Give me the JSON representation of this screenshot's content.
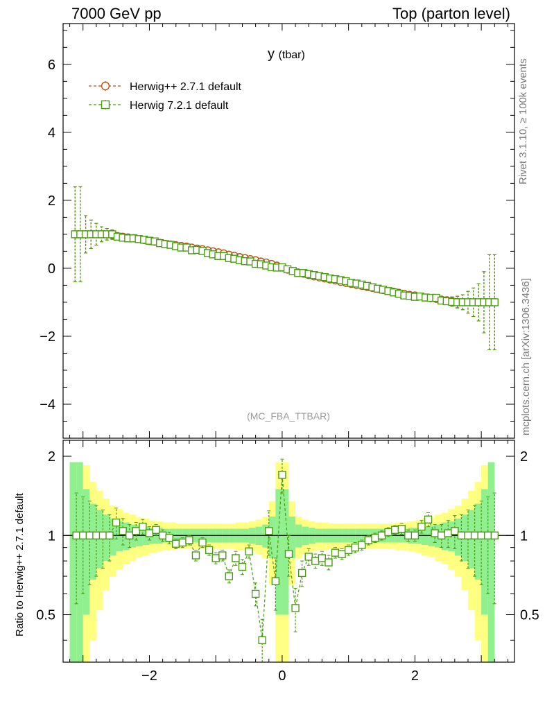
{
  "header": {
    "left": "7000 GeV pp",
    "right": "Top (parton level)"
  },
  "side": {
    "rivet": "Rivet 3.1.10, ≥ 100k events",
    "mcplots": "mcplots.cern.ch [arXiv:1306.3436]"
  },
  "chart_data": [
    {
      "type": "line",
      "title": "y (tbar)",
      "annotation": "(MC_FBA_TTBAR)",
      "xlim": [
        -3.3,
        3.5
      ],
      "ylim": [
        -5,
        7.2
      ],
      "yticks": [
        -4,
        -2,
        0,
        2,
        4,
        6
      ],
      "legend_position": "top-left",
      "series": [
        {
          "name": "Herwig++ 2.7.1 default",
          "marker": "circle",
          "color": "#b5520f",
          "x": [
            -3.12,
            -3.04,
            -2.96,
            -2.88,
            -2.8,
            -2.72,
            -2.64,
            -2.56,
            -2.48,
            -2.4,
            -2.32,
            -2.24,
            -2.16,
            -2.08,
            -2.0,
            -1.92,
            -1.84,
            -1.76,
            -1.68,
            -1.6,
            -1.52,
            -1.44,
            -1.36,
            -1.28,
            -1.2,
            -1.12,
            -1.04,
            -0.96,
            -0.88,
            -0.8,
            -0.72,
            -0.64,
            -0.56,
            -0.48,
            -0.4,
            -0.32,
            -0.24,
            -0.16,
            -0.08,
            0.0,
            0.08,
            0.16,
            0.24,
            0.32,
            0.4,
            0.48,
            0.56,
            0.64,
            0.72,
            0.8,
            0.88,
            0.96,
            1.04,
            1.12,
            1.2,
            1.28,
            1.36,
            1.44,
            1.52,
            1.6,
            1.68,
            1.76,
            1.84,
            1.92,
            2.0,
            2.08,
            2.16,
            2.24,
            2.32,
            2.4,
            2.48,
            2.56,
            2.64,
            2.72,
            2.8,
            2.88,
            2.96,
            3.04,
            3.12,
            3.2
          ],
          "y": [
            1.0,
            1.0,
            1.0,
            1.0,
            1.0,
            1.0,
            1.0,
            0.98,
            0.95,
            0.93,
            0.91,
            0.89,
            0.86,
            0.83,
            0.8,
            0.78,
            0.75,
            0.72,
            0.7,
            0.68,
            0.66,
            0.64,
            0.61,
            0.58,
            0.56,
            0.53,
            0.5,
            0.47,
            0.44,
            0.4,
            0.37,
            0.33,
            0.3,
            0.27,
            0.24,
            0.2,
            0.17,
            0.13,
            0.08,
            0.02,
            -0.04,
            -0.08,
            -0.12,
            -0.16,
            -0.2,
            -0.24,
            -0.27,
            -0.3,
            -0.33,
            -0.36,
            -0.4,
            -0.43,
            -0.46,
            -0.49,
            -0.52,
            -0.55,
            -0.58,
            -0.61,
            -0.64,
            -0.67,
            -0.69,
            -0.72,
            -0.75,
            -0.78,
            -0.8,
            -0.83,
            -0.86,
            -0.88,
            -0.9,
            -0.92,
            -0.94,
            -0.97,
            -0.99,
            -1.0,
            -1.0,
            -1.0,
            -1.0,
            -1.0,
            -1.0,
            -1.0
          ],
          "err": [
            1.4,
            1.4,
            0.55,
            0.42,
            0.32,
            0.22,
            0.17,
            0.13,
            0.1,
            0.09,
            0.08,
            0.07,
            0.06,
            0.06,
            0.05,
            0.05,
            0.04,
            0.04,
            0.04,
            0.04,
            0.04,
            0.03,
            0.03,
            0.03,
            0.03,
            0.03,
            0.03,
            0.03,
            0.03,
            0.03,
            0.03,
            0.03,
            0.03,
            0.03,
            0.03,
            0.03,
            0.03,
            0.03,
            0.03,
            0.03,
            0.03,
            0.03,
            0.03,
            0.03,
            0.03,
            0.03,
            0.03,
            0.03,
            0.03,
            0.03,
            0.03,
            0.03,
            0.03,
            0.03,
            0.03,
            0.03,
            0.03,
            0.03,
            0.04,
            0.04,
            0.04,
            0.04,
            0.04,
            0.05,
            0.05,
            0.06,
            0.06,
            0.07,
            0.08,
            0.09,
            0.1,
            0.13,
            0.17,
            0.22,
            0.32,
            0.42,
            0.55,
            0.9,
            1.4,
            1.4
          ]
        },
        {
          "name": "Herwig 7.2.1 default",
          "marker": "square",
          "color": "#4a9a12",
          "x": [
            -3.12,
            -3.04,
            -2.96,
            -2.88,
            -2.8,
            -2.72,
            -2.64,
            -2.56,
            -2.48,
            -2.4,
            -2.32,
            -2.24,
            -2.16,
            -2.08,
            -2.0,
            -1.92,
            -1.84,
            -1.76,
            -1.68,
            -1.6,
            -1.52,
            -1.44,
            -1.36,
            -1.28,
            -1.2,
            -1.12,
            -1.04,
            -0.96,
            -0.88,
            -0.8,
            -0.72,
            -0.64,
            -0.56,
            -0.48,
            -0.4,
            -0.32,
            -0.24,
            -0.16,
            -0.08,
            0.0,
            0.08,
            0.16,
            0.24,
            0.32,
            0.4,
            0.48,
            0.56,
            0.64,
            0.72,
            0.8,
            0.88,
            0.96,
            1.04,
            1.12,
            1.2,
            1.28,
            1.36,
            1.44,
            1.52,
            1.6,
            1.68,
            1.76,
            1.84,
            1.92,
            2.0,
            2.08,
            2.16,
            2.24,
            2.32,
            2.4,
            2.48,
            2.56,
            2.64,
            2.72,
            2.8,
            2.88,
            2.96,
            3.04,
            3.12,
            3.2
          ],
          "y": [
            1.0,
            1.0,
            1.0,
            1.0,
            1.0,
            1.0,
            1.0,
            1.0,
            0.93,
            0.9,
            0.88,
            0.88,
            0.86,
            0.84,
            0.81,
            0.79,
            0.74,
            0.71,
            0.69,
            0.65,
            0.61,
            0.61,
            0.53,
            0.54,
            0.51,
            0.45,
            0.41,
            0.36,
            0.36,
            0.3,
            0.28,
            0.24,
            0.21,
            0.2,
            0.13,
            0.12,
            0.08,
            0.03,
            0.02,
            0.03,
            -0.03,
            -0.08,
            -0.14,
            -0.14,
            -0.17,
            -0.2,
            -0.23,
            -0.26,
            -0.3,
            -0.32,
            -0.35,
            -0.38,
            -0.43,
            -0.45,
            -0.48,
            -0.52,
            -0.56,
            -0.6,
            -0.63,
            -0.67,
            -0.71,
            -0.75,
            -0.8,
            -0.81,
            -0.84,
            -0.83,
            -0.86,
            -0.87,
            -0.87,
            -0.95,
            -0.97,
            -0.99,
            -1.0,
            -1.0,
            -1.0,
            -1.0,
            -1.0,
            -1.0,
            -1.0,
            -1.0
          ],
          "err": [
            1.4,
            1.4,
            0.55,
            0.42,
            0.32,
            0.22,
            0.17,
            0.13,
            0.1,
            0.09,
            0.08,
            0.07,
            0.06,
            0.06,
            0.05,
            0.05,
            0.04,
            0.04,
            0.04,
            0.04,
            0.04,
            0.03,
            0.03,
            0.03,
            0.03,
            0.03,
            0.03,
            0.03,
            0.03,
            0.03,
            0.03,
            0.03,
            0.03,
            0.03,
            0.03,
            0.03,
            0.03,
            0.03,
            0.03,
            0.03,
            0.03,
            0.03,
            0.03,
            0.03,
            0.03,
            0.03,
            0.03,
            0.03,
            0.03,
            0.03,
            0.03,
            0.03,
            0.03,
            0.03,
            0.03,
            0.03,
            0.03,
            0.03,
            0.04,
            0.04,
            0.04,
            0.04,
            0.04,
            0.05,
            0.05,
            0.06,
            0.06,
            0.07,
            0.08,
            0.09,
            0.1,
            0.13,
            0.17,
            0.22,
            0.32,
            0.42,
            0.55,
            0.9,
            1.4,
            1.4
          ]
        }
      ]
    },
    {
      "type": "line",
      "ylabel": "Ratio to Herwig++ 2.7.1 default",
      "xlim": [
        -3.3,
        3.5
      ],
      "ylim": [
        0.33,
        2.3
      ],
      "y_scale": "log",
      "xticks": [
        -2,
        0,
        2
      ],
      "yticks": [
        0.5,
        1,
        2
      ],
      "reference_line": 1,
      "bands": {
        "yellow": "#ffff80",
        "green": "#90f090",
        "edges": [
          -3.2,
          -3.1,
          -3.0,
          -2.9,
          -2.8,
          -2.7,
          -2.6,
          -2.5,
          -2.4,
          -2.3,
          -2.2,
          -2.1,
          -2.0,
          -1.9,
          -1.8,
          -1.7,
          -1.6,
          -1.5,
          -1.4,
          -1.3,
          -1.2,
          -1.1,
          -1.0,
          -0.9,
          -0.8,
          -0.7,
          -0.6,
          -0.5,
          -0.4,
          -0.3,
          -0.2,
          -0.1,
          0.0,
          0.1,
          0.2,
          0.3,
          0.4,
          0.5,
          0.6,
          0.7,
          0.8,
          0.9,
          1.0,
          1.1,
          1.2,
          1.3,
          1.4,
          1.5,
          1.6,
          1.7,
          1.8,
          1.9,
          2.0,
          2.1,
          2.2,
          2.3,
          2.4,
          2.5,
          2.6,
          2.7,
          2.8,
          2.9,
          3.0,
          3.1,
          3.2
        ],
        "yellow_half": [
          0.9,
          0.9,
          0.85,
          0.6,
          0.48,
          0.38,
          0.3,
          0.26,
          0.22,
          0.2,
          0.17,
          0.16,
          0.14,
          0.13,
          0.12,
          0.12,
          0.11,
          0.11,
          0.11,
          0.11,
          0.11,
          0.11,
          0.11,
          0.11,
          0.11,
          0.12,
          0.12,
          0.13,
          0.15,
          0.18,
          0.35,
          0.9,
          0.9,
          0.35,
          0.18,
          0.15,
          0.13,
          0.12,
          0.12,
          0.11,
          0.11,
          0.11,
          0.11,
          0.11,
          0.11,
          0.11,
          0.11,
          0.11,
          0.11,
          0.12,
          0.12,
          0.13,
          0.14,
          0.16,
          0.17,
          0.2,
          0.22,
          0.26,
          0.3,
          0.38,
          0.48,
          0.6,
          0.85,
          0.9
        ],
        "green_half": [
          0.9,
          0.9,
          0.5,
          0.32,
          0.25,
          0.2,
          0.16,
          0.13,
          0.12,
          0.1,
          0.09,
          0.08,
          0.07,
          0.07,
          0.06,
          0.06,
          0.06,
          0.06,
          0.06,
          0.06,
          0.06,
          0.06,
          0.06,
          0.06,
          0.06,
          0.06,
          0.06,
          0.07,
          0.08,
          0.1,
          0.18,
          0.5,
          0.5,
          0.18,
          0.1,
          0.08,
          0.07,
          0.06,
          0.06,
          0.06,
          0.06,
          0.06,
          0.06,
          0.06,
          0.06,
          0.06,
          0.06,
          0.06,
          0.06,
          0.06,
          0.06,
          0.07,
          0.07,
          0.08,
          0.09,
          0.1,
          0.12,
          0.13,
          0.16,
          0.2,
          0.25,
          0.32,
          0.5,
          0.9
        ]
      },
      "series": [
        {
          "name": "Herwig 7.2.1 default",
          "marker": "square",
          "color": "#4a9a12",
          "x": [
            -3.1,
            -3.0,
            -2.9,
            -2.8,
            -2.7,
            -2.6,
            -2.5,
            -2.4,
            -2.3,
            -2.2,
            -2.1,
            -2.0,
            -1.9,
            -1.8,
            -1.7,
            -1.6,
            -1.5,
            -1.4,
            -1.3,
            -1.2,
            -1.1,
            -1.0,
            -0.9,
            -0.8,
            -0.7,
            -0.6,
            -0.5,
            -0.4,
            -0.3,
            -0.2,
            -0.1,
            0.0,
            0.1,
            0.2,
            0.3,
            0.4,
            0.5,
            0.6,
            0.7,
            0.8,
            0.9,
            1.0,
            1.1,
            1.2,
            1.3,
            1.4,
            1.5,
            1.6,
            1.7,
            1.8,
            1.9,
            2.0,
            2.1,
            2.2,
            2.3,
            2.4,
            2.5,
            2.6,
            2.7,
            2.8,
            2.9,
            3.0,
            3.1,
            3.2
          ],
          "y": [
            1.0,
            1.0,
            1.0,
            1.0,
            1.0,
            1.0,
            1.12,
            1.04,
            1.0,
            1.04,
            1.08,
            1.02,
            1.05,
            1.0,
            0.98,
            0.93,
            0.94,
            0.96,
            0.84,
            0.94,
            0.88,
            0.82,
            0.84,
            0.7,
            0.82,
            0.76,
            0.87,
            0.6,
            0.4,
            1.04,
            0.67,
            1.7,
            0.85,
            0.53,
            0.72,
            0.83,
            0.8,
            0.82,
            0.79,
            0.86,
            0.85,
            0.88,
            0.9,
            0.92,
            0.96,
            0.98,
            1.0,
            1.03,
            1.05,
            1.06,
            1.0,
            1.0,
            1.08,
            1.15,
            1.02,
            1.0,
            1.02,
            1.04,
            1.0,
            1.0,
            1.0,
            1.0,
            1.0,
            1.0
          ],
          "err": [
            0.45,
            0.4,
            0.35,
            0.3,
            0.25,
            0.2,
            0.15,
            0.12,
            0.1,
            0.08,
            0.07,
            0.06,
            0.05,
            0.05,
            0.05,
            0.04,
            0.04,
            0.04,
            0.04,
            0.04,
            0.04,
            0.04,
            0.04,
            0.04,
            0.05,
            0.05,
            0.05,
            0.06,
            0.08,
            0.2,
            0.15,
            0.25,
            0.15,
            0.1,
            0.08,
            0.06,
            0.05,
            0.05,
            0.05,
            0.04,
            0.04,
            0.04,
            0.04,
            0.04,
            0.04,
            0.04,
            0.04,
            0.04,
            0.04,
            0.05,
            0.05,
            0.05,
            0.06,
            0.07,
            0.08,
            0.1,
            0.12,
            0.15,
            0.2,
            0.25,
            0.3,
            0.35,
            0.4,
            0.45
          ]
        }
      ]
    }
  ]
}
